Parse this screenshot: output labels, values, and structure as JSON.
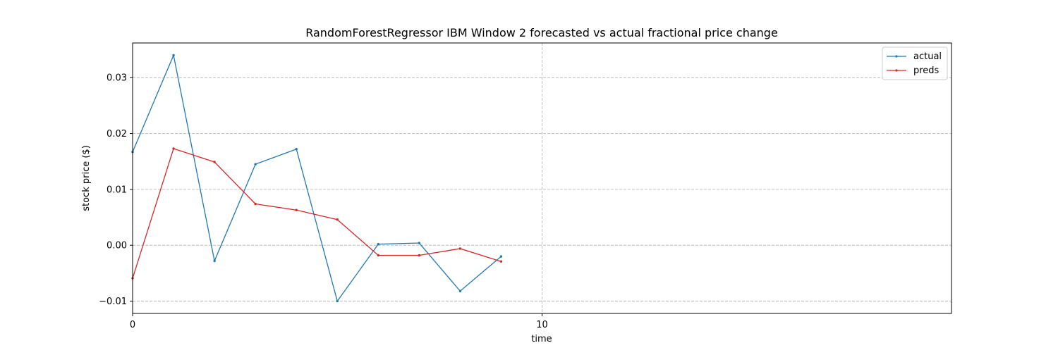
{
  "chart_data": {
    "type": "line",
    "title": "RandomForestRegressor IBM Window 2 forecasted vs actual fractional price change",
    "xlabel": "time",
    "ylabel": "stock price ($)",
    "xlim": [
      0,
      20
    ],
    "ylim": [
      -0.0122,
      0.0362
    ],
    "x_ticks": [
      0,
      10
    ],
    "x_tick_labels": [
      "0",
      "10"
    ],
    "y_ticks": [
      -0.01,
      0.0,
      0.01,
      0.02,
      0.03
    ],
    "y_tick_labels": [
      "−0.01",
      "0.00",
      "0.01",
      "0.02",
      "0.03"
    ],
    "grid": true,
    "grid_style": "dashed",
    "legend_position": "top-right",
    "x": [
      0,
      1,
      2,
      3,
      4,
      5,
      6,
      7,
      8,
      9
    ],
    "series": [
      {
        "name": "actual",
        "color": "#1f77b4",
        "values": [
          0.0167,
          0.034,
          -0.0028,
          0.0145,
          0.0172,
          -0.01,
          0.0002,
          0.0004,
          -0.0082,
          -0.002
        ]
      },
      {
        "name": "preds",
        "color": "#d62728",
        "values": [
          -0.0059,
          0.0173,
          0.0149,
          0.0074,
          0.0063,
          0.0046,
          -0.0018,
          -0.0018,
          -0.0006,
          -0.0029
        ]
      }
    ]
  }
}
